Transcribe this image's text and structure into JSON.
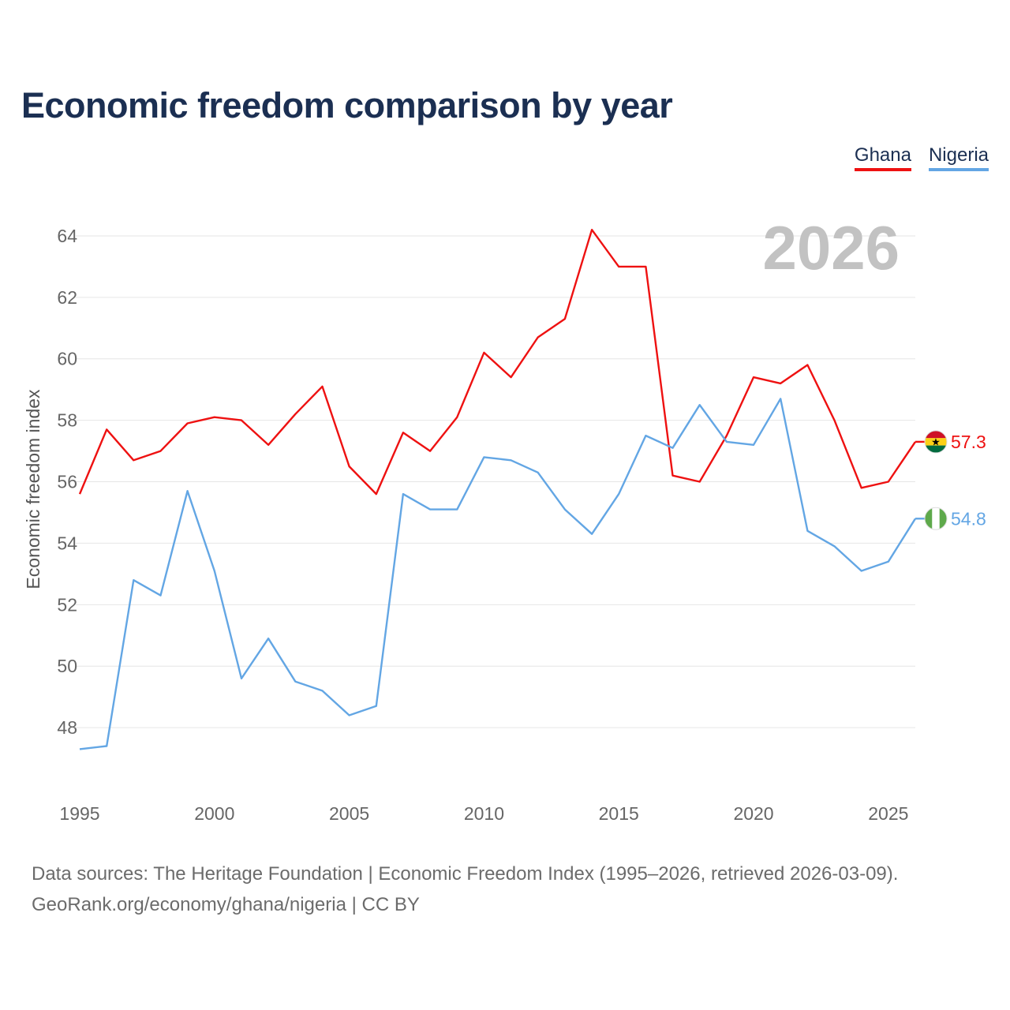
{
  "title": "Economic freedom comparison by year",
  "legend": [
    {
      "name": "Ghana",
      "color": "#ee1111"
    },
    {
      "name": "Nigeria",
      "color": "#63a6e4"
    }
  ],
  "footer": {
    "line1": "Data sources: The Heritage Foundation | Economic Freedom Index (1995–2026, retrieved 2026-03-09).",
    "line2": "GeoRank.org/economy/ghana/nigeria | CC BY"
  },
  "chart_data": {
    "type": "line",
    "title": "Economic freedom comparison by year",
    "watermark": "2026",
    "xlabel": "",
    "ylabel": "Economic freedom index",
    "xlim": [
      1995,
      2026
    ],
    "ylim": [
      46,
      65
    ],
    "x_ticks": [
      1995,
      2000,
      2005,
      2010,
      2015,
      2020,
      2025
    ],
    "y_ticks": [
      48,
      50,
      52,
      54,
      56,
      58,
      60,
      62,
      64
    ],
    "grid": true,
    "x": [
      1995,
      1996,
      1997,
      1998,
      1999,
      2000,
      2001,
      2002,
      2003,
      2004,
      2005,
      2006,
      2007,
      2008,
      2009,
      2010,
      2011,
      2012,
      2013,
      2014,
      2015,
      2016,
      2017,
      2018,
      2019,
      2020,
      2021,
      2022,
      2023,
      2024,
      2025,
      2026
    ],
    "series": [
      {
        "name": "Ghana",
        "color": "#ee1111",
        "end_label": "57.3",
        "flag": "ghana-flag-icon",
        "values": [
          55.6,
          57.7,
          56.7,
          57.0,
          57.9,
          58.1,
          58.0,
          57.2,
          58.2,
          59.1,
          56.5,
          55.6,
          57.6,
          57.0,
          58.1,
          60.2,
          59.4,
          60.7,
          61.3,
          64.2,
          63.0,
          63.0,
          56.2,
          56.0,
          57.5,
          59.4,
          59.2,
          59.8,
          58.0,
          55.8,
          56.0,
          57.3
        ]
      },
      {
        "name": "Nigeria",
        "color": "#63a6e4",
        "end_label": "54.8",
        "flag": "nigeria-flag-icon",
        "values": [
          47.3,
          47.4,
          52.8,
          52.3,
          55.7,
          53.1,
          49.6,
          50.9,
          49.5,
          49.2,
          48.4,
          48.7,
          55.6,
          55.1,
          55.1,
          56.8,
          56.7,
          56.3,
          55.1,
          54.3,
          55.6,
          57.5,
          57.1,
          58.5,
          57.3,
          57.2,
          58.7,
          54.4,
          53.9,
          53.1,
          53.4,
          54.8
        ]
      }
    ]
  }
}
